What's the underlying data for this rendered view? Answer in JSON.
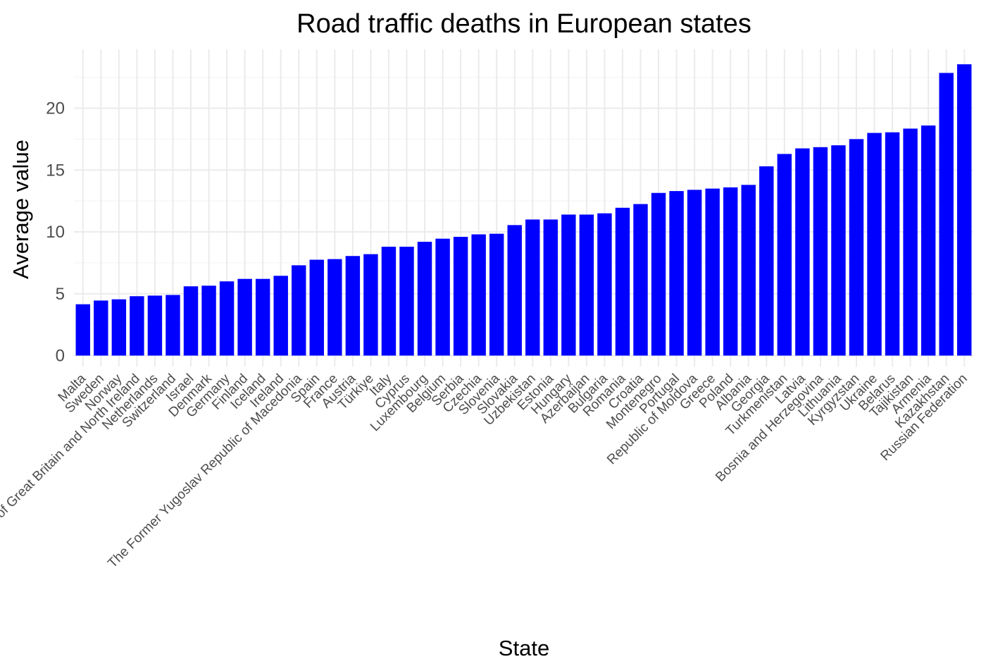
{
  "chart_data": {
    "type": "bar",
    "title": "Road traffic deaths in European states",
    "xlabel": "State",
    "ylabel": "Average value",
    "ylim": [
      0,
      24.5
    ],
    "yticks": [
      0,
      5,
      10,
      15,
      20
    ],
    "grid": true,
    "legend": "none",
    "bar_color": "#0000ff",
    "categories": [
      "Malta",
      "Sweden",
      "Norway",
      "United Kingdom of Great Britain and North Ireland",
      "Netherlands",
      "Switzerland",
      "Israel",
      "Denmark",
      "Germany",
      "Finland",
      "Iceland",
      "Ireland",
      "The Former Yugoslav Republic of Macedonia",
      "Spain",
      "France",
      "Austria",
      "Türkiye",
      "Italy",
      "Cyprus",
      "Luxembourg",
      "Belgium",
      "Serbia",
      "Czechia",
      "Slovenia",
      "Slovakia",
      "Uzbekistan",
      "Estonia",
      "Hungary",
      "Azerbaijan",
      "Bulgaria",
      "Romania",
      "Croatia",
      "Montenegro",
      "Portugal",
      "Republic of Moldova",
      "Greece",
      "Poland",
      "Albania",
      "Georgia",
      "Turkmenistan",
      "Latvia",
      "Bosnia and Herzegovina",
      "Lithuania",
      "Kyrgyzstan",
      "Ukraine",
      "Belarus",
      "Tajikistan",
      "Armenia",
      "Kazakhstan",
      "Russian Federation"
    ],
    "values": [
      4.15,
      4.45,
      4.55,
      4.8,
      4.85,
      4.9,
      5.6,
      5.65,
      6.0,
      6.2,
      6.2,
      6.45,
      7.3,
      7.75,
      7.8,
      8.05,
      8.2,
      8.8,
      8.8,
      9.2,
      9.45,
      9.6,
      9.8,
      9.85,
      10.55,
      11.0,
      11.0,
      11.4,
      11.4,
      11.5,
      11.95,
      12.25,
      13.15,
      13.3,
      13.4,
      13.5,
      13.6,
      13.8,
      15.3,
      16.3,
      16.75,
      16.85,
      17.0,
      17.5,
      18.0,
      18.05,
      18.35,
      18.6,
      22.85,
      23.55
    ]
  }
}
